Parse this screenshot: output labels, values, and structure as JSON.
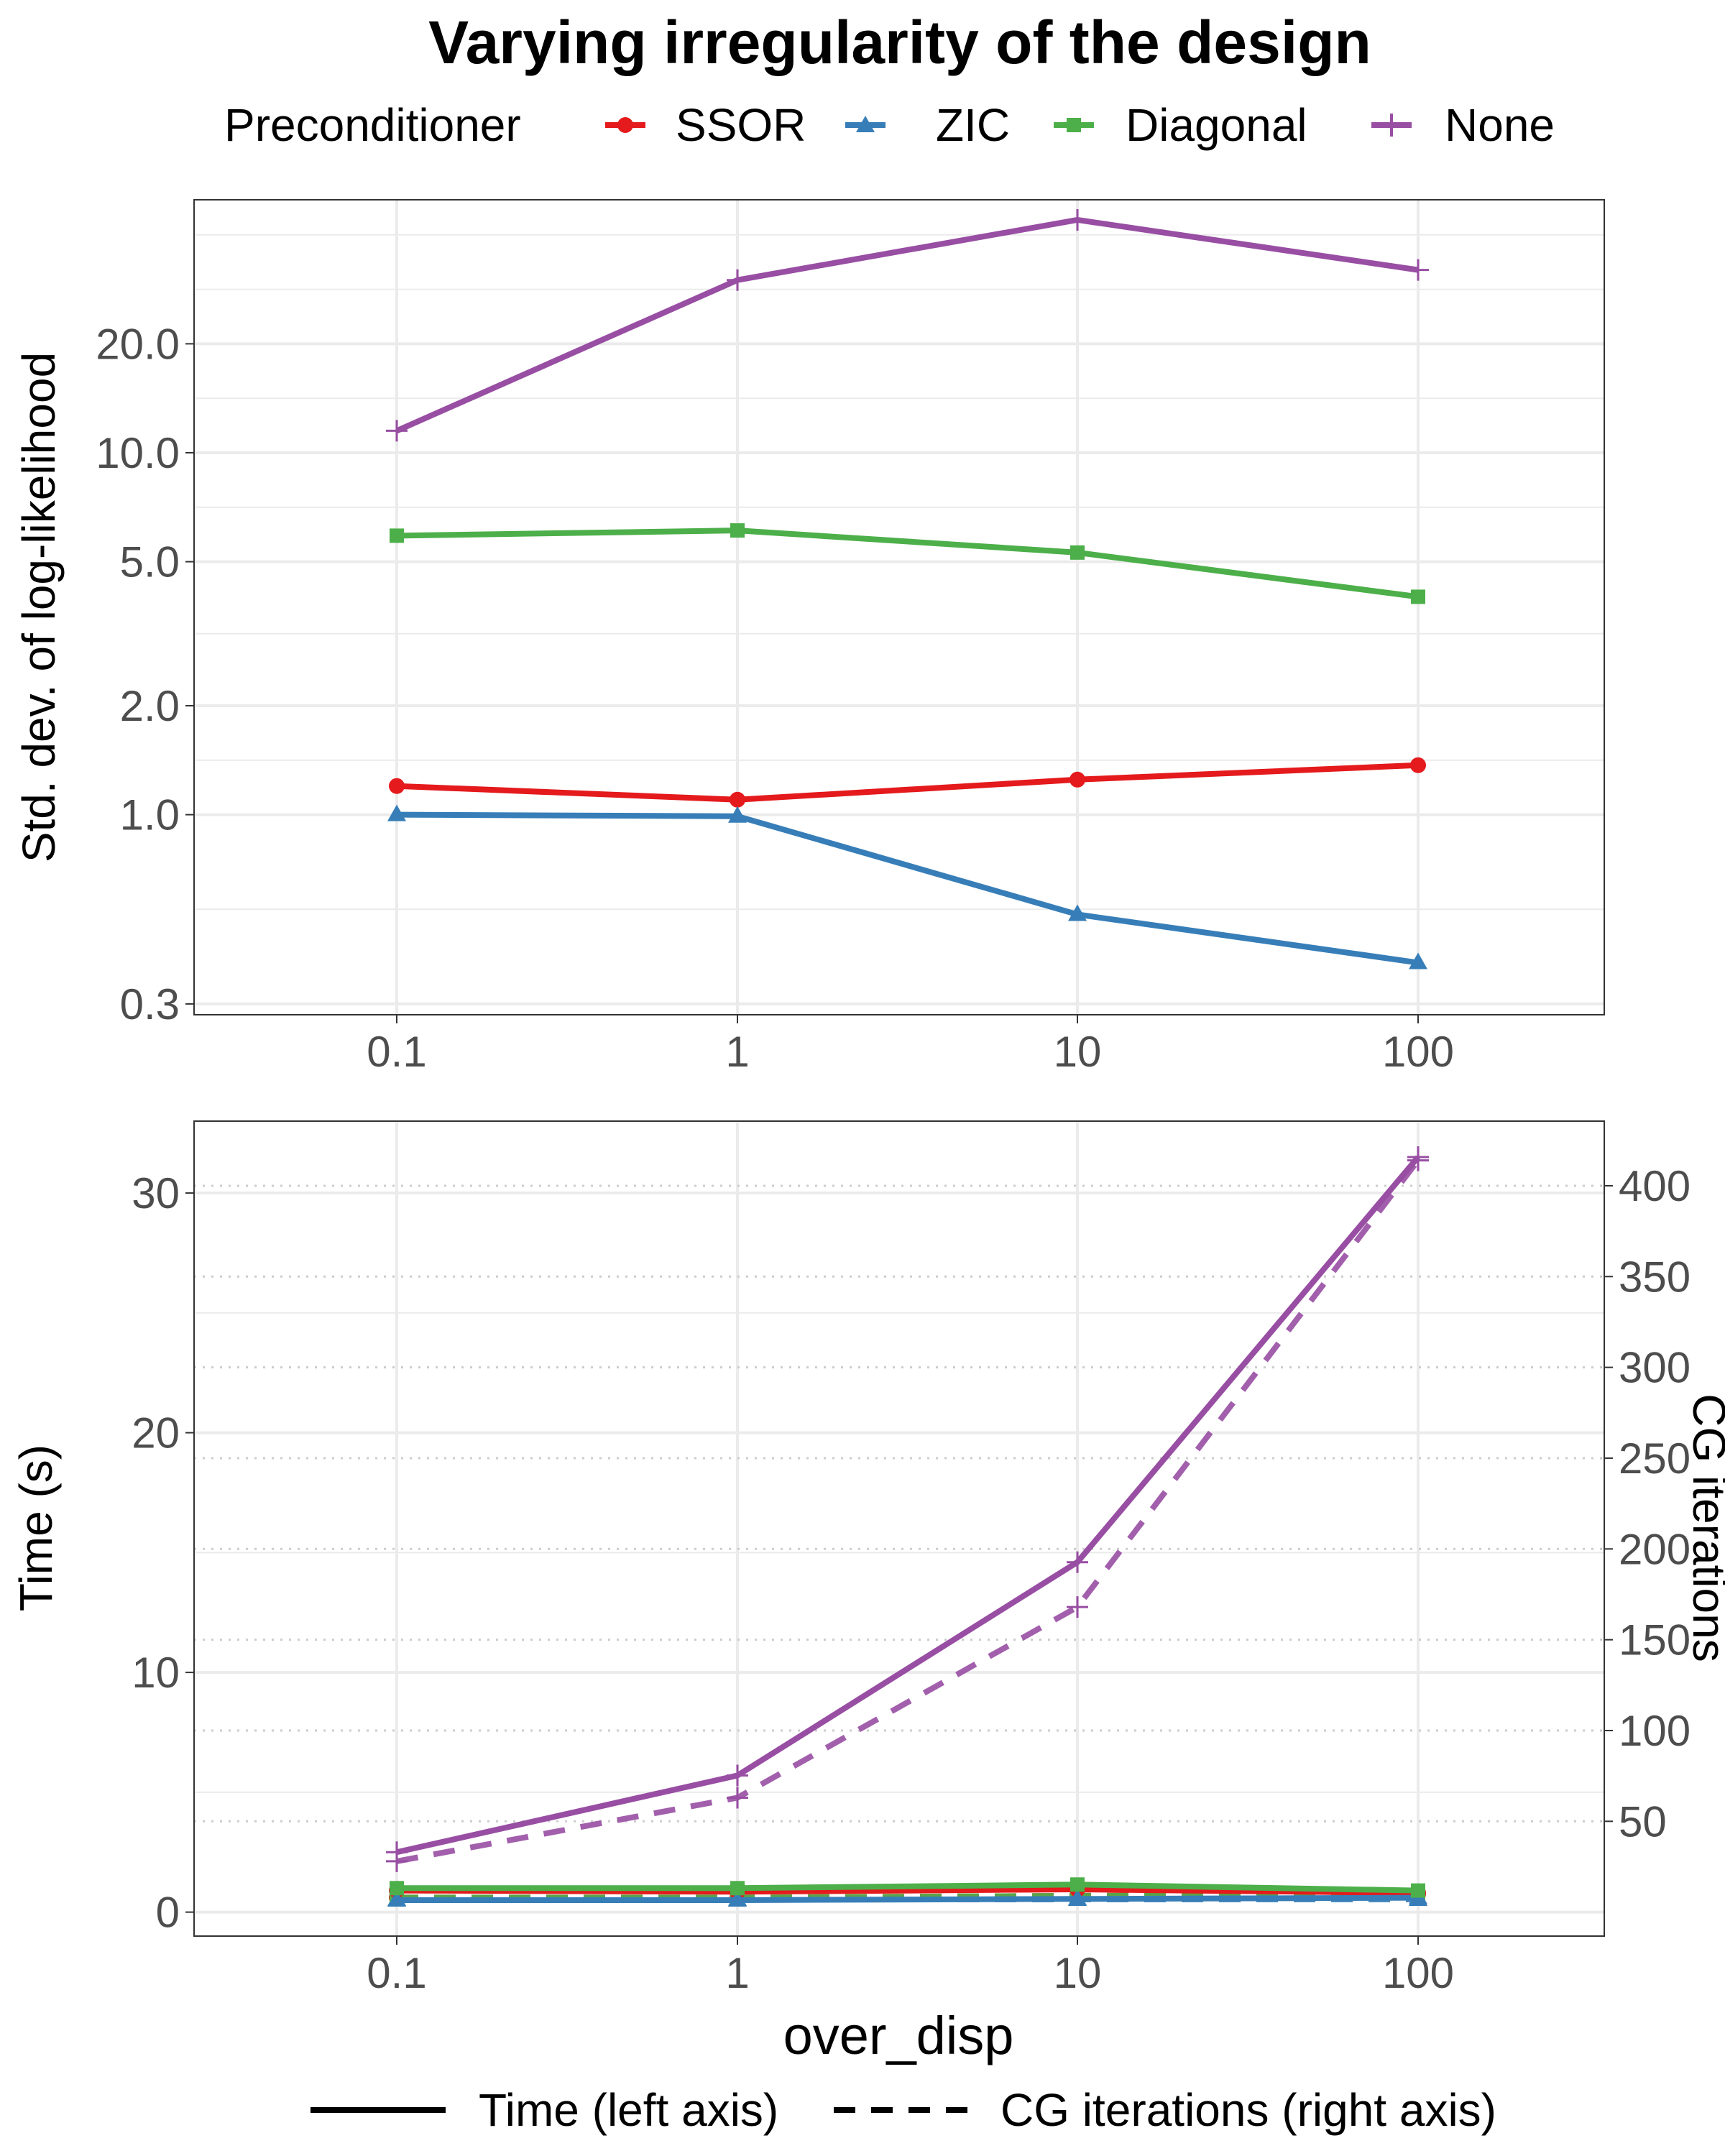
{
  "chart_data": {
    "title": "Varying irregularity of the design",
    "legend": {
      "title": "Preconditioner",
      "placement": "top",
      "entries": [
        {
          "name": "SSOR",
          "color": "#E41A1C",
          "marker": "circle"
        },
        {
          "name": "ZIC",
          "color": "#377EB8",
          "marker": "triangle"
        },
        {
          "name": "Diagonal",
          "color": "#4DAF4A",
          "marker": "square"
        },
        {
          "name": "None",
          "color": "#984EA3",
          "marker": "plus"
        }
      ]
    },
    "line_legend": {
      "placement": "bottom",
      "entries": [
        {
          "label": "Time (left axis)",
          "style": "solid"
        },
        {
          "label": "CG iterations (right axis)",
          "style": "dashed"
        }
      ]
    },
    "xlabel": "over_disp",
    "x": [
      0.1,
      1,
      10,
      100
    ],
    "x_tick_labels": [
      "0.1",
      "1",
      "10",
      "100"
    ],
    "panels": [
      {
        "type": "line",
        "ylabel": "Std. dev. of log-likelihood",
        "yscale": "log",
        "ylim": [
          0.28,
          50
        ],
        "y_ticks": [
          0.3,
          1.0,
          2.0,
          5.0,
          10.0,
          20.0
        ],
        "y_tick_labels": [
          "0.3",
          "1.0",
          "2.0",
          "5.0",
          "10.0",
          "20.0"
        ],
        "series": [
          {
            "name": "SSOR",
            "values": [
              1.2,
              1.1,
              1.25,
              1.37
            ]
          },
          {
            "name": "ZIC",
            "values": [
              1.0,
              0.99,
              0.53,
              0.39
            ]
          },
          {
            "name": "Diagonal",
            "values": [
              5.9,
              6.1,
              5.3,
              4.0
            ]
          },
          {
            "name": "None",
            "values": [
              11.5,
              30.0,
              44.0,
              32.0
            ]
          }
        ]
      },
      {
        "type": "line",
        "ylabel": "Time (s)",
        "ylabel_right": "CG iterations",
        "ylim": [
          -1,
          33
        ],
        "y_ticks": [
          0,
          10,
          20,
          30
        ],
        "y_tick_labels": [
          "0",
          "10",
          "20",
          "30"
        ],
        "ylim_right": [
          -13.2,
          435.6
        ],
        "y_ticks_right": [
          50,
          100,
          150,
          200,
          250,
          300,
          350,
          400
        ],
        "y_tick_labels_right": [
          "50",
          "100",
          "150",
          "200",
          "250",
          "300",
          "350",
          "400"
        ],
        "series_time": [
          {
            "name": "SSOR",
            "values": [
              0.9,
              0.85,
              0.95,
              0.8
            ]
          },
          {
            "name": "ZIC",
            "values": [
              0.5,
              0.5,
              0.55,
              0.6
            ]
          },
          {
            "name": "Diagonal",
            "values": [
              1.0,
              1.0,
              1.15,
              0.9
            ]
          },
          {
            "name": "None",
            "values": [
              2.5,
              5.7,
              14.6,
              31.5
            ]
          }
        ],
        "series_iterations": [
          {
            "name": "SSOR",
            "values": [
              8,
              8,
              9,
              10
            ]
          },
          {
            "name": "ZIC",
            "values": [
              7,
              7,
              7,
              7
            ]
          },
          {
            "name": "Diagonal",
            "values": [
              8,
              8,
              9,
              9
            ]
          },
          {
            "name": "None",
            "values": [
              28,
              63,
              168,
              414
            ]
          }
        ]
      }
    ]
  }
}
